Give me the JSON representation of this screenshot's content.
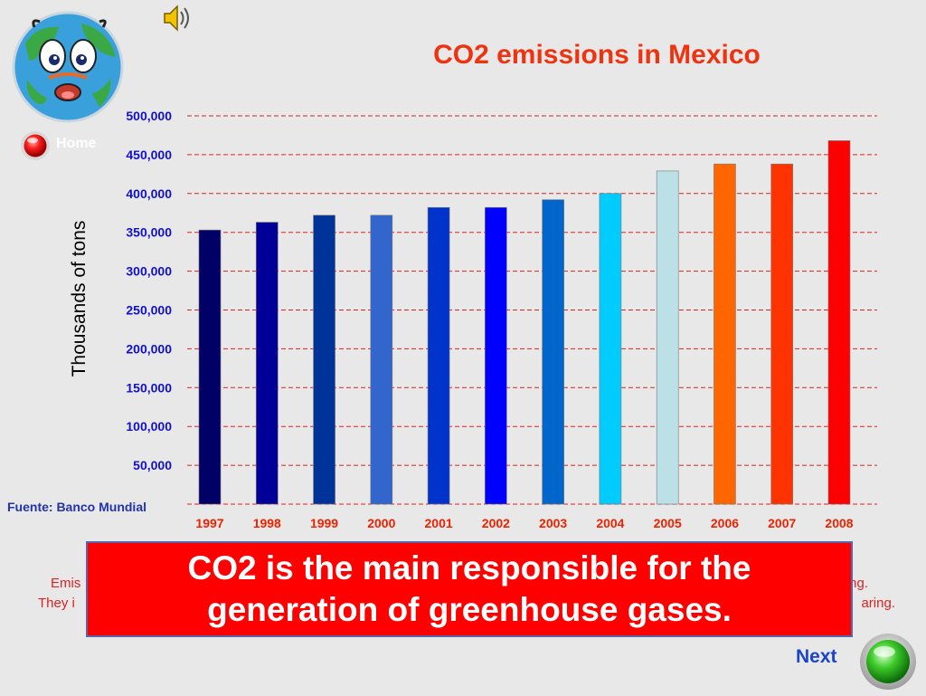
{
  "nav": {
    "home_label": "Home",
    "next_label": "Next"
  },
  "icons": {
    "logo": "earth-face-icon",
    "speaker": "speaker-icon",
    "home": "red-orb-icon",
    "next": "green-orb-icon"
  },
  "source": "Fuente: Banco Mundial",
  "callout": {
    "line1": "CO2 is the main responsible for the",
    "line2": "generation of greenhouse gases."
  },
  "background_text": {
    "line1_left": "Emis",
    "line1_right": "ing.",
    "line2_left": "They i",
    "line2_right": "aring."
  },
  "colors": {
    "title": "#ee3311",
    "axis_tick": "#1111cc",
    "year_tick": "#ee2200",
    "gridline": "#dd2222",
    "callout_bg": "#ff0000",
    "next_text": "#1a44cc"
  },
  "chart_data": {
    "type": "bar",
    "title": "CO2 emissions in Mexico",
    "ylabel": "Thousands of tons",
    "xlabel": "",
    "categories": [
      "1997",
      "1998",
      "1999",
      "2000",
      "2001",
      "2002",
      "2003",
      "2004",
      "2005",
      "2006",
      "2007",
      "2008"
    ],
    "values": [
      353000,
      363000,
      372000,
      372000,
      382000,
      382000,
      392000,
      400000,
      429000,
      438000,
      438000,
      468000
    ],
    "bar_colors": [
      "#000066",
      "#000099",
      "#003399",
      "#3366cc",
      "#0033cc",
      "#0000ff",
      "#0066cc",
      "#00ccff",
      "#bbe0e6",
      "#ff6600",
      "#ff3300",
      "#ff0000"
    ],
    "yticks": [
      "50,000",
      "100,000",
      "150,000",
      "200,000",
      "250,000",
      "300,000",
      "350,000",
      "400,000",
      "450,000",
      "500,000"
    ],
    "ylim": [
      0,
      500000
    ],
    "grid": true,
    "legend": false
  }
}
